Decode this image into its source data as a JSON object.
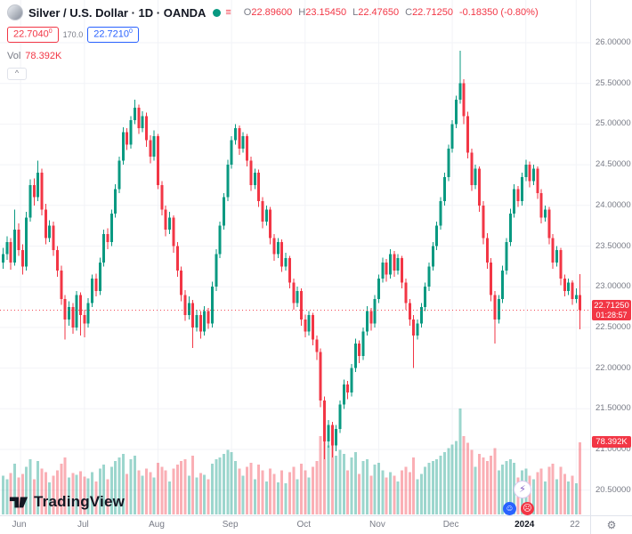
{
  "header": {
    "symbol_title": "Silver / U.S. Dollar · 1D · OANDA",
    "ohlc": {
      "open_label": "O",
      "open": "22.89600",
      "high_label": "H",
      "high": "23.15450",
      "low_label": "L",
      "low": "22.47650",
      "close_label": "C",
      "close": "22.71250",
      "change": "-0.18350 (-0.80%)"
    },
    "bid": "22.7040",
    "bid_sup": "0",
    "spread": "170.0",
    "ask": "22.7210",
    "ask_sup": "0",
    "volume_label": "Vol",
    "volume_value": "78.392K",
    "collapse_button": "^"
  },
  "price_scale": {
    "current_price_label": "22.71250",
    "countdown": "01:28:57",
    "volume_badge": "78.392K"
  },
  "footer": {
    "logo_text": "TradingView"
  },
  "icons": {
    "gear": "⚙",
    "lightning": "⚡",
    "smile": "☺",
    "frown": "☹",
    "list": "≡"
  },
  "colors": {
    "up": "#089981",
    "down": "#F23645",
    "accent_blue": "#2962FF",
    "badge_red": "#F23645",
    "grid": "#F2F3F7",
    "axis_text": "#787B86",
    "title_text": "#131722",
    "volume_up": "rgba(8,153,129,0.4)",
    "volume_down": "rgba(242,54,69,0.4)"
  },
  "chart_data": {
    "type": "candlestick",
    "title": "Silver / U.S. Dollar, 1D, OANDA",
    "legend_position": "top-left",
    "grid": "faint",
    "current_price": 22.7125,
    "last_candle": {
      "o": 22.896,
      "h": 23.1545,
      "l": 22.4765,
      "c": 22.7125,
      "v": "78.392K"
    },
    "y_axis": {
      "ticks": [
        "26.00000",
        "25.50000",
        "25.00000",
        "24.50000",
        "24.00000",
        "23.50000",
        "23.00000",
        "22.50000",
        "22.00000",
        "21.50000",
        "21.00000",
        "20.50000"
      ],
      "range": [
        20.2,
        26.5
      ]
    },
    "x_axis": {
      "labels": [
        {
          "text": "Jun",
          "i": 4.5
        },
        {
          "text": "Jul",
          "i": 21
        },
        {
          "text": "Aug",
          "i": 40
        },
        {
          "text": "Sep",
          "i": 59
        },
        {
          "text": "Oct",
          "i": 78
        },
        {
          "text": "Nov",
          "i": 97
        },
        {
          "text": "Dec",
          "i": 116
        },
        {
          "text": "2024",
          "i": 135,
          "year": true
        },
        {
          "text": "22",
          "i": 148
        }
      ]
    },
    "volume_unit": "K",
    "ohlcv": [
      [
        23.3,
        23.48,
        23.22,
        23.4,
        42
      ],
      [
        23.4,
        23.62,
        23.33,
        23.55,
        38
      ],
      [
        23.55,
        23.6,
        23.21,
        23.3,
        45
      ],
      [
        23.3,
        23.95,
        23.26,
        23.7,
        55
      ],
      [
        23.7,
        23.78,
        23.38,
        23.45,
        40
      ],
      [
        23.45,
        23.52,
        23.15,
        23.25,
        44
      ],
      [
        23.25,
        23.92,
        23.2,
        23.85,
        52
      ],
      [
        23.85,
        24.32,
        23.8,
        24.25,
        60
      ],
      [
        24.25,
        24.33,
        24.0,
        24.1,
        38
      ],
      [
        24.1,
        24.55,
        24.05,
        24.4,
        58
      ],
      [
        24.4,
        24.45,
        23.88,
        23.95,
        50
      ],
      [
        23.95,
        24.02,
        23.52,
        23.6,
        46
      ],
      [
        23.6,
        23.82,
        23.55,
        23.75,
        35
      ],
      [
        23.75,
        23.8,
        23.38,
        23.45,
        42
      ],
      [
        23.45,
        23.5,
        23.12,
        23.2,
        48
      ],
      [
        23.2,
        23.26,
        22.78,
        22.85,
        55
      ],
      [
        22.85,
        22.9,
        22.35,
        22.6,
        62
      ],
      [
        22.6,
        22.82,
        22.52,
        22.75,
        40
      ],
      [
        22.75,
        22.8,
        22.42,
        22.5,
        45
      ],
      [
        22.5,
        22.95,
        22.46,
        22.9,
        43
      ],
      [
        22.9,
        22.93,
        22.4,
        22.65,
        47
      ],
      [
        22.65,
        22.72,
        22.38,
        22.55,
        41
      ],
      [
        22.55,
        22.86,
        22.5,
        22.8,
        39
      ],
      [
        22.8,
        23.15,
        22.75,
        23.1,
        46
      ],
      [
        23.1,
        23.16,
        22.88,
        22.95,
        36
      ],
      [
        22.95,
        23.36,
        22.9,
        23.3,
        50
      ],
      [
        23.3,
        23.7,
        23.25,
        23.65,
        54
      ],
      [
        23.65,
        23.72,
        23.46,
        23.55,
        38
      ],
      [
        23.55,
        23.95,
        23.5,
        23.9,
        52
      ],
      [
        23.9,
        24.26,
        23.85,
        24.2,
        58
      ],
      [
        24.2,
        24.6,
        24.15,
        24.55,
        62
      ],
      [
        24.55,
        24.96,
        24.5,
        24.9,
        66
      ],
      [
        24.9,
        24.95,
        24.68,
        24.75,
        44
      ],
      [
        24.75,
        25.1,
        24.7,
        25.05,
        60
      ],
      [
        25.05,
        25.3,
        25.0,
        25.2,
        64
      ],
      [
        25.2,
        25.24,
        24.88,
        24.95,
        48
      ],
      [
        24.95,
        25.16,
        24.9,
        25.1,
        42
      ],
      [
        25.1,
        25.14,
        24.72,
        24.8,
        50
      ],
      [
        24.8,
        24.86,
        24.52,
        24.6,
        46
      ],
      [
        24.6,
        24.92,
        24.55,
        24.85,
        40
      ],
      [
        24.85,
        24.88,
        24.2,
        24.25,
        56
      ],
      [
        24.25,
        24.3,
        23.88,
        23.95,
        52
      ],
      [
        23.95,
        24.0,
        23.62,
        23.7,
        48
      ],
      [
        23.7,
        23.92,
        23.65,
        23.85,
        36
      ],
      [
        23.85,
        23.88,
        23.42,
        23.5,
        50
      ],
      [
        23.5,
        23.55,
        23.12,
        23.2,
        54
      ],
      [
        23.2,
        23.25,
        22.82,
        22.9,
        58
      ],
      [
        22.9,
        22.96,
        22.58,
        22.65,
        60
      ],
      [
        22.65,
        22.88,
        22.6,
        22.8,
        42
      ],
      [
        22.8,
        22.84,
        22.25,
        22.5,
        64
      ],
      [
        22.5,
        22.72,
        22.45,
        22.65,
        40
      ],
      [
        22.65,
        22.7,
        22.36,
        22.45,
        45
      ],
      [
        22.45,
        22.76,
        22.4,
        22.7,
        43
      ],
      [
        22.7,
        22.74,
        22.48,
        22.55,
        38
      ],
      [
        22.55,
        23.06,
        22.5,
        23.0,
        55
      ],
      [
        23.0,
        23.46,
        22.95,
        23.4,
        60
      ],
      [
        23.4,
        23.8,
        23.35,
        23.75,
        62
      ],
      [
        23.75,
        24.15,
        23.7,
        24.1,
        66
      ],
      [
        24.1,
        24.56,
        24.05,
        24.5,
        70
      ],
      [
        24.5,
        24.85,
        24.45,
        24.8,
        68
      ],
      [
        24.8,
        25.0,
        24.75,
        24.95,
        58
      ],
      [
        24.95,
        24.98,
        24.62,
        24.7,
        50
      ],
      [
        24.7,
        24.9,
        24.65,
        24.85,
        42
      ],
      [
        24.85,
        24.88,
        24.48,
        24.55,
        52
      ],
      [
        24.55,
        24.6,
        24.18,
        24.25,
        56
      ],
      [
        24.25,
        24.45,
        24.2,
        24.4,
        38
      ],
      [
        24.4,
        24.44,
        23.98,
        24.05,
        54
      ],
      [
        24.05,
        24.1,
        23.72,
        23.8,
        48
      ],
      [
        23.8,
        24.0,
        23.75,
        23.95,
        36
      ],
      [
        23.95,
        23.98,
        23.52,
        23.6,
        50
      ],
      [
        23.6,
        23.65,
        23.32,
        23.4,
        44
      ],
      [
        23.4,
        23.6,
        23.35,
        23.55,
        35
      ],
      [
        23.55,
        23.58,
        23.18,
        23.25,
        48
      ],
      [
        23.25,
        23.42,
        23.2,
        23.35,
        34
      ],
      [
        23.35,
        23.38,
        22.98,
        23.05,
        46
      ],
      [
        23.05,
        23.1,
        22.72,
        22.8,
        52
      ],
      [
        22.8,
        23.0,
        22.75,
        22.95,
        38
      ],
      [
        22.95,
        22.98,
        22.52,
        22.6,
        55
      ],
      [
        22.6,
        22.66,
        22.38,
        22.45,
        48
      ],
      [
        22.45,
        22.7,
        22.4,
        22.65,
        40
      ],
      [
        22.65,
        22.68,
        22.28,
        22.35,
        52
      ],
      [
        22.35,
        22.4,
        22.1,
        22.2,
        58
      ],
      [
        22.2,
        22.24,
        21.52,
        21.6,
        85
      ],
      [
        21.6,
        21.65,
        20.88,
        21.1,
        110
      ],
      [
        21.1,
        21.36,
        21.02,
        21.3,
        75
      ],
      [
        21.3,
        21.34,
        20.9,
        21.05,
        90
      ],
      [
        21.05,
        21.3,
        20.98,
        21.25,
        64
      ],
      [
        21.25,
        21.6,
        21.2,
        21.55,
        70
      ],
      [
        21.55,
        21.86,
        21.5,
        21.8,
        66
      ],
      [
        21.8,
        21.84,
        21.62,
        21.7,
        48
      ],
      [
        21.7,
        22.05,
        21.65,
        22.0,
        62
      ],
      [
        22.0,
        22.36,
        21.95,
        22.3,
        68
      ],
      [
        22.3,
        22.34,
        22.06,
        22.15,
        44
      ],
      [
        22.15,
        22.5,
        22.1,
        22.45,
        58
      ],
      [
        22.45,
        22.76,
        22.4,
        22.7,
        60
      ],
      [
        22.7,
        22.74,
        22.46,
        22.55,
        42
      ],
      [
        22.55,
        22.9,
        22.5,
        22.85,
        54
      ],
      [
        22.85,
        23.15,
        22.8,
        23.1,
        56
      ],
      [
        23.1,
        23.36,
        23.05,
        23.3,
        48
      ],
      [
        23.3,
        23.34,
        23.06,
        23.15,
        40
      ],
      [
        23.15,
        23.46,
        23.1,
        23.4,
        46
      ],
      [
        23.4,
        23.44,
        23.12,
        23.2,
        42
      ],
      [
        23.2,
        23.4,
        23.15,
        23.35,
        36
      ],
      [
        23.35,
        23.38,
        22.98,
        23.05,
        48
      ],
      [
        23.05,
        23.1,
        22.72,
        22.8,
        52
      ],
      [
        22.8,
        22.85,
        22.52,
        22.6,
        46
      ],
      [
        22.6,
        22.65,
        22.0,
        22.4,
        62
      ],
      [
        22.4,
        22.6,
        22.35,
        22.55,
        38
      ],
      [
        22.55,
        22.8,
        22.5,
        22.75,
        44
      ],
      [
        22.75,
        23.05,
        22.7,
        23.0,
        52
      ],
      [
        23.0,
        23.3,
        22.95,
        23.25,
        56
      ],
      [
        23.25,
        23.55,
        23.2,
        23.5,
        58
      ],
      [
        23.5,
        23.8,
        23.45,
        23.75,
        60
      ],
      [
        23.75,
        24.1,
        23.7,
        24.05,
        64
      ],
      [
        24.05,
        24.4,
        24.0,
        24.35,
        68
      ],
      [
        24.35,
        24.75,
        24.3,
        24.7,
        72
      ],
      [
        24.7,
        25.05,
        24.65,
        25.0,
        76
      ],
      [
        25.0,
        25.35,
        24.95,
        25.3,
        80
      ],
      [
        25.3,
        25.9,
        25.25,
        25.5,
        115
      ],
      [
        25.5,
        25.55,
        25.0,
        25.1,
        85
      ],
      [
        25.1,
        25.15,
        24.58,
        24.65,
        78
      ],
      [
        24.65,
        24.7,
        24.18,
        24.25,
        70
      ],
      [
        24.25,
        24.5,
        24.2,
        24.45,
        52
      ],
      [
        24.45,
        24.48,
        23.92,
        24.0,
        66
      ],
      [
        24.0,
        24.05,
        23.52,
        23.6,
        62
      ],
      [
        23.6,
        23.66,
        23.22,
        23.3,
        58
      ],
      [
        23.3,
        23.35,
        22.82,
        22.9,
        64
      ],
      [
        22.9,
        22.95,
        22.3,
        22.6,
        72
      ],
      [
        22.6,
        22.9,
        22.55,
        22.85,
        48
      ],
      [
        22.85,
        23.26,
        22.8,
        23.2,
        54
      ],
      [
        23.2,
        23.6,
        23.15,
        23.55,
        58
      ],
      [
        23.55,
        23.96,
        23.5,
        23.9,
        60
      ],
      [
        23.9,
        24.26,
        23.85,
        24.2,
        56
      ],
      [
        24.2,
        24.24,
        23.98,
        24.05,
        40
      ],
      [
        24.05,
        24.4,
        24.0,
        24.35,
        48
      ],
      [
        24.35,
        24.56,
        24.3,
        24.5,
        50
      ],
      [
        24.5,
        24.54,
        24.22,
        24.3,
        42
      ],
      [
        24.3,
        24.5,
        24.25,
        24.45,
        38
      ],
      [
        24.45,
        24.48,
        24.08,
        24.15,
        46
      ],
      [
        24.15,
        24.2,
        23.78,
        23.85,
        50
      ],
      [
        23.85,
        24.0,
        23.8,
        23.95,
        36
      ],
      [
        23.95,
        23.98,
        23.52,
        23.6,
        52
      ],
      [
        23.6,
        23.65,
        23.22,
        23.3,
        55
      ],
      [
        23.3,
        23.5,
        23.25,
        23.45,
        38
      ],
      [
        23.45,
        23.48,
        23.02,
        23.1,
        52
      ],
      [
        23.1,
        23.15,
        22.88,
        22.95,
        44
      ],
      [
        22.95,
        23.1,
        22.9,
        23.05,
        36
      ],
      [
        23.05,
        23.08,
        22.78,
        22.85,
        42
      ],
      [
        22.85,
        22.98,
        22.8,
        22.9,
        34
      ],
      [
        22.896,
        23.1545,
        22.4765,
        22.7125,
        78.392
      ]
    ]
  }
}
